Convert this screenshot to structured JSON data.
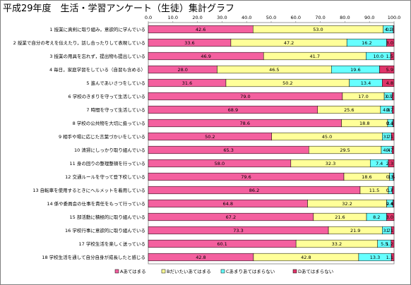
{
  "title": "平成29年度　生活・学習アンケート（生徒）集計グラフ",
  "chart_data": {
    "type": "bar",
    "orientation": "horizontal",
    "stacked": "percent",
    "xlim": [
      0,
      100
    ],
    "ticks": [
      "0.0",
      "10.0",
      "20.0",
      "30.0",
      "40.0",
      "50.0",
      "60.0",
      "70.0",
      "80.0",
      "90.0",
      "100.0"
    ],
    "legend_position": "bottom",
    "categories": [
      "1 授業に真剣に取り組み，意欲的に学んでいる",
      "2 授業で自分の考えを伝えたり，話し合ったりして表現している",
      "3 授業の用具を忘れず，提出物も提出している",
      "4 毎日，家庭学習をしている（自習も含める）",
      "5 進んであいさつをしている",
      "6 学校のきまりを守って生活している",
      "7 時間を守って生活している",
      "8 学校の公共物を大切に扱っている",
      "9 相手や場に応じた言葉づかいをしている",
      "10 清掃にしっかり取り組んでいる",
      "11 身の回りの整理整頓を行っている",
      "12 交通ルールを守って登下校している",
      "13 自転車を使用するときにヘルメットを着用している",
      "14 係や委員会の仕事を責任をもって行っている",
      "15 部活動に積極的に取り組んでいる",
      "16 学校行事に意欲的に取り組んでいる",
      "17 学校生活を楽しく送っている",
      "18 学校生活を通して自分自身が成長したと感じる"
    ],
    "series": [
      {
        "name": "Aあてはまる",
        "color": "#f4609f",
        "values": [
          42.6,
          33.6,
          46.9,
          28.0,
          31.6,
          79.0,
          68.9,
          78.6,
          50.2,
          65.3,
          58.0,
          79.6,
          86.2,
          64.8,
          67.2,
          73.3,
          60.1,
          42.8
        ]
      },
      {
        "name": "Bだいたいあてはまる",
        "color": "#ffff99",
        "values": [
          53.0,
          47.2,
          41.7,
          46.5,
          50.2,
          17.0,
          25.6,
          18.8,
          45.0,
          29.5,
          32.3,
          18.6,
          11.5,
          32.2,
          21.6,
          21.9,
          33.2,
          42.8
        ]
      },
      {
        "name": "Cあまりあてはまらない",
        "color": "#66ffff",
        "values": [
          4.1,
          16.2,
          10.0,
          19.6,
          13.4,
          3.3,
          4.8,
          2.2,
          3.7,
          4.4,
          7.4,
          1.5,
          1.6,
          2.6,
          8.2,
          3.7,
          5.5,
          13.3
        ]
      },
      {
        "name": "Dあてはまらない",
        "color": "#e0356a",
        "values": [
          0.3,
          3.0,
          1.5,
          5.9,
          4.8,
          0.7,
          0.7,
          0.4,
          1.1,
          0.7,
          2.3,
          0.3,
          0.7,
          0.4,
          3.0,
          1.1,
          1.2,
          1.1
        ]
      }
    ],
    "data_labels": [
      [
        "42.6",
        "53.0",
        "4.1",
        "0.3"
      ],
      [
        "33.6",
        "47.2",
        "16.2",
        "3.0"
      ],
      [
        "46.9",
        "41.7",
        "10.0",
        "1.5"
      ],
      [
        "28.0",
        "46.5",
        "19.6",
        "5.9"
      ],
      [
        "31.6",
        "50.2",
        "13.4",
        "4.8"
      ],
      [
        "79.0",
        "17.0",
        "3.3",
        "0.7"
      ],
      [
        "68.9",
        "25.6",
        "4.8",
        "0.7"
      ],
      [
        "78.6",
        "18.8",
        "2.2",
        "0.4"
      ],
      [
        "50.2",
        "45.0",
        "3.7",
        "1.1"
      ],
      [
        "65.3",
        "29.5",
        "4.4",
        "0.7"
      ],
      [
        "58.0",
        "32.3",
        "7.4",
        "2.3"
      ],
      [
        "79.6",
        "18.6",
        "1.5",
        "0.3"
      ],
      [
        "86.2",
        "11.5",
        "1.6",
        "0.7"
      ],
      [
        "64.8",
        "32.2",
        "2.6",
        "0.4"
      ],
      [
        "67.2",
        "21.6",
        "8.2",
        "3.0"
      ],
      [
        "73.3",
        "21.9",
        "3.7",
        "1.1"
      ],
      [
        "60.1",
        "33.2",
        "5.5",
        "1.2"
      ],
      [
        "42.8",
        "42.8",
        "13.3",
        "1.1"
      ]
    ]
  }
}
